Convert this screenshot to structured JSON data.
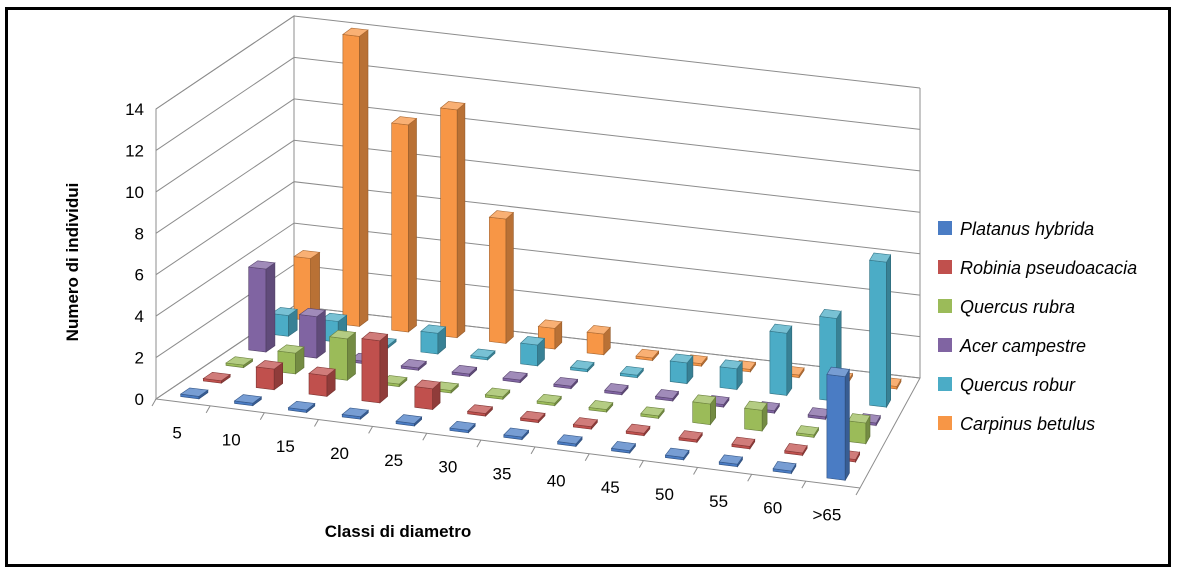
{
  "chart_data": {
    "type": "bar",
    "subtype": "3d-column",
    "categories": [
      "5",
      "10",
      "15",
      "20",
      "25",
      "30",
      "35",
      "40",
      "45",
      "50",
      "55",
      "60",
      ">65"
    ],
    "xlabel": "Classi di diametro",
    "ylabel": "Numero di individui",
    "ylim": [
      0,
      14
    ],
    "yticks": [
      "0",
      "2",
      "4",
      "6",
      "8",
      "10",
      "12",
      "14"
    ],
    "grid": true,
    "legend_position": "right",
    "series": [
      {
        "name": "Platanus hybrida",
        "color": "#4a7cc4",
        "values": [
          0,
          0,
          0,
          0,
          0,
          0,
          0,
          0,
          0,
          0,
          0,
          0,
          5
        ]
      },
      {
        "name": "Robinia pseudoacacia",
        "color": "#c0504d",
        "values": [
          0,
          1,
          1,
          3,
          1,
          0,
          0,
          0,
          0,
          0,
          0,
          0,
          0
        ]
      },
      {
        "name": "Quercus rubra",
        "color": "#9bbb59",
        "values": [
          0,
          1,
          2,
          0,
          0,
          0,
          0,
          0,
          0,
          1,
          1,
          0,
          1
        ]
      },
      {
        "name": "Acer campestre",
        "color": "#8064a2",
        "values": [
          4,
          2,
          0,
          0,
          0,
          0,
          0,
          0,
          0,
          0,
          0,
          0,
          0
        ]
      },
      {
        "name": "Quercus robur",
        "color": "#4bacc6",
        "values": [
          1,
          1,
          0,
          1,
          0,
          1,
          0,
          0,
          1,
          1,
          3,
          4,
          7
        ]
      },
      {
        "name": "Carpinus betulus",
        "color": "#f79646",
        "values": [
          3,
          14,
          10,
          11,
          6,
          1,
          1,
          0,
          0,
          0,
          0,
          0,
          0
        ]
      }
    ]
  }
}
